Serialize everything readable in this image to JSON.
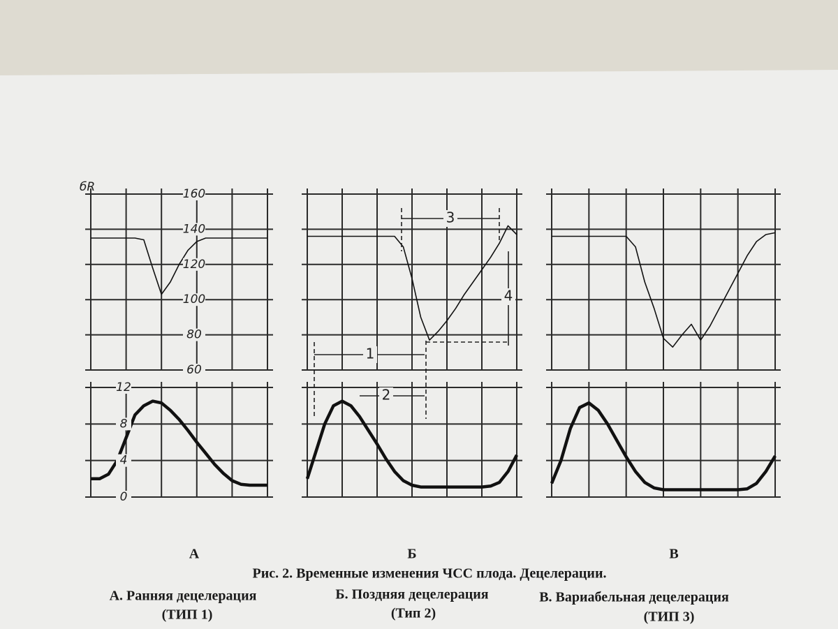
{
  "figure": {
    "corner_label": "бR",
    "fhr_ticks": [
      160,
      140,
      120,
      100,
      80,
      60
    ],
    "uterine_ticks": [
      12,
      8,
      4,
      0
    ],
    "panels": [
      {
        "label": "А",
        "fhr": [
          135,
          135,
          135,
          135,
          135,
          135,
          134,
          118,
          103,
          110,
          120,
          128,
          133,
          135,
          135,
          135,
          135,
          135,
          135,
          135,
          135
        ],
        "uterine": [
          2,
          2,
          2.5,
          4,
          6.5,
          9,
          10,
          10.5,
          10.3,
          9.5,
          8.5,
          7.3,
          6,
          4.8,
          3.6,
          2.6,
          1.8,
          1.4,
          1.3,
          1.3,
          1.3
        ]
      },
      {
        "label": "Б",
        "fhr": [
          136,
          136,
          136,
          136,
          136,
          136,
          136,
          136,
          136,
          136,
          136,
          130,
          112,
          90,
          77,
          82,
          88,
          95,
          103,
          110,
          117,
          124,
          132,
          142,
          137
        ],
        "uterine": [
          2,
          5,
          8,
          10,
          10.5,
          10,
          8.8,
          7.3,
          5.8,
          4.2,
          2.8,
          1.8,
          1.3,
          1.1,
          1.1,
          1.1,
          1.1,
          1.1,
          1.1,
          1.1,
          1.1,
          1.2,
          1.6,
          2.8,
          4.6
        ],
        "annotations": [
          "1",
          "2",
          "3",
          "4"
        ]
      },
      {
        "label": "В",
        "fhr": [
          136,
          136,
          136,
          136,
          136,
          136,
          136,
          136,
          136,
          130,
          110,
          95,
          78,
          73,
          80,
          86,
          77,
          85,
          95,
          105,
          115,
          125,
          133,
          137,
          138
        ],
        "uterine": [
          1.5,
          4,
          7.5,
          9.8,
          10.3,
          9.5,
          8,
          6.2,
          4.4,
          2.8,
          1.6,
          1,
          0.8,
          0.8,
          0.8,
          0.8,
          0.8,
          0.8,
          0.8,
          0.8,
          0.8,
          0.9,
          1.5,
          2.8,
          4.5
        ]
      }
    ]
  },
  "caption": {
    "title": "Рис. 2. Временные изменения ЧСС плода. Децелерации.",
    "items": [
      {
        "name": "А. Ранняя децелерация",
        "type": "(ТИП 1)"
      },
      {
        "name": "Б. Поздняя децелерация",
        "type": "(Тип 2)"
      },
      {
        "name": "В. Вариабельная децелерация",
        "type": "(ТИП 3)"
      }
    ]
  }
}
